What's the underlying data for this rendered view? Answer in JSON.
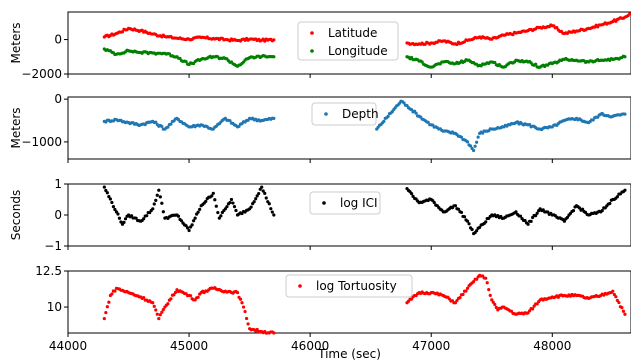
{
  "chart_data": [
    {
      "type": "scatter",
      "ylabel": "Meters",
      "ylim": [
        -2000,
        1600
      ],
      "xlim": [
        44000,
        48650
      ],
      "yticks": [
        0,
        -2000
      ],
      "legend_position": "top-center",
      "series": [
        {
          "name": "Latitude",
          "color": "#ff0000",
          "points": [
            [
              44300,
              150
            ],
            [
              44400,
              350
            ],
            [
              44500,
              650
            ],
            [
              44600,
              520
            ],
            [
              44700,
              320
            ],
            [
              44800,
              180
            ],
            [
              44900,
              80
            ],
            [
              45000,
              20
            ],
            [
              45100,
              120
            ],
            [
              45200,
              60
            ],
            [
              45300,
              0
            ],
            [
              45400,
              -50
            ],
            [
              45500,
              20
            ],
            [
              45600,
              -40
            ],
            [
              45700,
              -20
            ],
            [
              46800,
              -200
            ],
            [
              46900,
              -250
            ],
            [
              47000,
              -200
            ],
            [
              47100,
              -80
            ],
            [
              47200,
              -250
            ],
            [
              47300,
              -50
            ],
            [
              47400,
              150
            ],
            [
              47500,
              20
            ],
            [
              47600,
              250
            ],
            [
              47700,
              380
            ],
            [
              47800,
              520
            ],
            [
              47900,
              700
            ],
            [
              48000,
              800
            ],
            [
              48100,
              350
            ],
            [
              48200,
              500
            ],
            [
              48300,
              650
            ],
            [
              48400,
              850
            ],
            [
              48500,
              1050
            ],
            [
              48600,
              1300
            ],
            [
              48640,
              1500
            ]
          ]
        },
        {
          "name": "Longitude",
          "color": "#008000",
          "points": [
            [
              44300,
              -550
            ],
            [
              44400,
              -850
            ],
            [
              44500,
              -650
            ],
            [
              44600,
              -750
            ],
            [
              44700,
              -780
            ],
            [
              44800,
              -800
            ],
            [
              44900,
              -1000
            ],
            [
              45000,
              -1450
            ],
            [
              45100,
              -1150
            ],
            [
              45200,
              -1000
            ],
            [
              45300,
              -1100
            ],
            [
              45400,
              -1550
            ],
            [
              45500,
              -1050
            ],
            [
              45600,
              -980
            ],
            [
              45700,
              -1000
            ],
            [
              46800,
              -1000
            ],
            [
              46900,
              -1250
            ],
            [
              47000,
              -1600
            ],
            [
              47100,
              -1300
            ],
            [
              47200,
              -1400
            ],
            [
              47300,
              -1200
            ],
            [
              47400,
              -1500
            ],
            [
              47500,
              -1300
            ],
            [
              47600,
              -1600
            ],
            [
              47700,
              -1200
            ],
            [
              47800,
              -1300
            ],
            [
              47900,
              -1600
            ],
            [
              48000,
              -1400
            ],
            [
              48100,
              -1150
            ],
            [
              48200,
              -1200
            ],
            [
              48300,
              -1300
            ],
            [
              48400,
              -1200
            ],
            [
              48500,
              -1150
            ],
            [
              48600,
              -1000
            ]
          ]
        }
      ]
    },
    {
      "type": "scatter",
      "ylabel": "Meters",
      "ylim": [
        -1400,
        50
      ],
      "xlim": [
        44000,
        48650
      ],
      "yticks": [
        0,
        -1000
      ],
      "legend_position": "top-center",
      "series": [
        {
          "name": "Depth",
          "color": "#1f77b4",
          "points": [
            [
              44300,
              -520
            ],
            [
              44400,
              -480
            ],
            [
              44500,
              -550
            ],
            [
              44600,
              -600
            ],
            [
              44700,
              -520
            ],
            [
              44800,
              -700
            ],
            [
              44900,
              -450
            ],
            [
              45000,
              -650
            ],
            [
              45100,
              -600
            ],
            [
              45200,
              -700
            ],
            [
              45300,
              -450
            ],
            [
              45400,
              -650
            ],
            [
              45500,
              -450
            ],
            [
              45600,
              -500
            ],
            [
              45700,
              -450
            ],
            [
              46550,
              -700
            ],
            [
              46750,
              -50
            ],
            [
              46800,
              -150
            ],
            [
              46900,
              -400
            ],
            [
              47000,
              -600
            ],
            [
              47100,
              -750
            ],
            [
              47200,
              -800
            ],
            [
              47300,
              -1000
            ],
            [
              47350,
              -1200
            ],
            [
              47400,
              -800
            ],
            [
              47500,
              -700
            ],
            [
              47600,
              -650
            ],
            [
              47700,
              -550
            ],
            [
              47800,
              -600
            ],
            [
              47900,
              -700
            ],
            [
              48000,
              -650
            ],
            [
              48100,
              -500
            ],
            [
              48200,
              -450
            ],
            [
              48300,
              -550
            ],
            [
              48400,
              -350
            ],
            [
              48500,
              -400
            ],
            [
              48600,
              -350
            ]
          ]
        }
      ]
    },
    {
      "type": "scatter",
      "ylabel": "Seconds",
      "ylim": [
        -1,
        1
      ],
      "xlim": [
        44000,
        48650
      ],
      "yticks": [
        1,
        0,
        -1
      ],
      "legend_position": "top-center",
      "series": [
        {
          "name": "log ICI",
          "color": "#000000",
          "points": [
            [
              44300,
              0.9
            ],
            [
              44400,
              0.1
            ],
            [
              44450,
              -0.3
            ],
            [
              44500,
              0.0
            ],
            [
              44600,
              -0.2
            ],
            [
              44700,
              0.2
            ],
            [
              44750,
              0.8
            ],
            [
              44800,
              -0.1
            ],
            [
              44900,
              0.0
            ],
            [
              45000,
              -0.5
            ],
            [
              45100,
              0.3
            ],
            [
              45200,
              0.7
            ],
            [
              45250,
              -0.1
            ],
            [
              45300,
              0.2
            ],
            [
              45350,
              0.5
            ],
            [
              45400,
              0.0
            ],
            [
              45500,
              0.2
            ],
            [
              45600,
              0.9
            ],
            [
              45700,
              0.0
            ],
            [
              46800,
              0.85
            ],
            [
              46850,
              0.6
            ],
            [
              46900,
              0.4
            ],
            [
              47000,
              0.5
            ],
            [
              47100,
              0.1
            ],
            [
              47200,
              0.3
            ],
            [
              47300,
              -0.2
            ],
            [
              47350,
              -0.6
            ],
            [
              47400,
              -0.4
            ],
            [
              47500,
              0.0
            ],
            [
              47600,
              -0.1
            ],
            [
              47700,
              0.1
            ],
            [
              47800,
              -0.3
            ],
            [
              47900,
              0.2
            ],
            [
              48000,
              0.0
            ],
            [
              48100,
              -0.2
            ],
            [
              48200,
              0.3
            ],
            [
              48300,
              0.0
            ],
            [
              48400,
              0.1
            ],
            [
              48500,
              0.5
            ],
            [
              48600,
              0.8
            ]
          ]
        }
      ]
    },
    {
      "type": "scatter",
      "ylabel": "",
      "xlabel": "Time (sec)",
      "ylim": [
        8.2,
        12.5
      ],
      "xlim": [
        44000,
        48650
      ],
      "yticks": [
        12.5,
        10.0
      ],
      "xticks": [
        44000,
        45000,
        46000,
        47000,
        48000
      ],
      "legend_position": "top-center",
      "series": [
        {
          "name": "log Tortuosity",
          "color": "#ff0000",
          "points": [
            [
              44300,
              9.2
            ],
            [
              44350,
              10.8
            ],
            [
              44400,
              11.3
            ],
            [
              44500,
              11.0
            ],
            [
              44600,
              10.7
            ],
            [
              44700,
              10.3
            ],
            [
              44750,
              9.2
            ],
            [
              44800,
              10.0
            ],
            [
              44900,
              11.2
            ],
            [
              45000,
              10.8
            ],
            [
              45050,
              10.5
            ],
            [
              45100,
              11.0
            ],
            [
              45200,
              11.3
            ],
            [
              45300,
              11.1
            ],
            [
              45400,
              11.0
            ],
            [
              45450,
              10.0
            ],
            [
              45500,
              8.5
            ],
            [
              45600,
              8.3
            ],
            [
              45700,
              8.2
            ],
            [
              46800,
              10.3
            ],
            [
              46900,
              11.0
            ],
            [
              47000,
              11.0
            ],
            [
              47100,
              10.8
            ],
            [
              47200,
              10.3
            ],
            [
              47300,
              11.3
            ],
            [
              47400,
              12.2
            ],
            [
              47450,
              12.0
            ],
            [
              47500,
              10.5
            ],
            [
              47550,
              9.8
            ],
            [
              47600,
              10.0
            ],
            [
              47700,
              9.5
            ],
            [
              47800,
              9.6
            ],
            [
              47900,
              10.5
            ],
            [
              48000,
              10.7
            ],
            [
              48100,
              10.8
            ],
            [
              48200,
              10.8
            ],
            [
              48300,
              10.6
            ],
            [
              48400,
              10.8
            ],
            [
              48500,
              11.1
            ],
            [
              48600,
              9.5
            ]
          ]
        }
      ]
    }
  ]
}
